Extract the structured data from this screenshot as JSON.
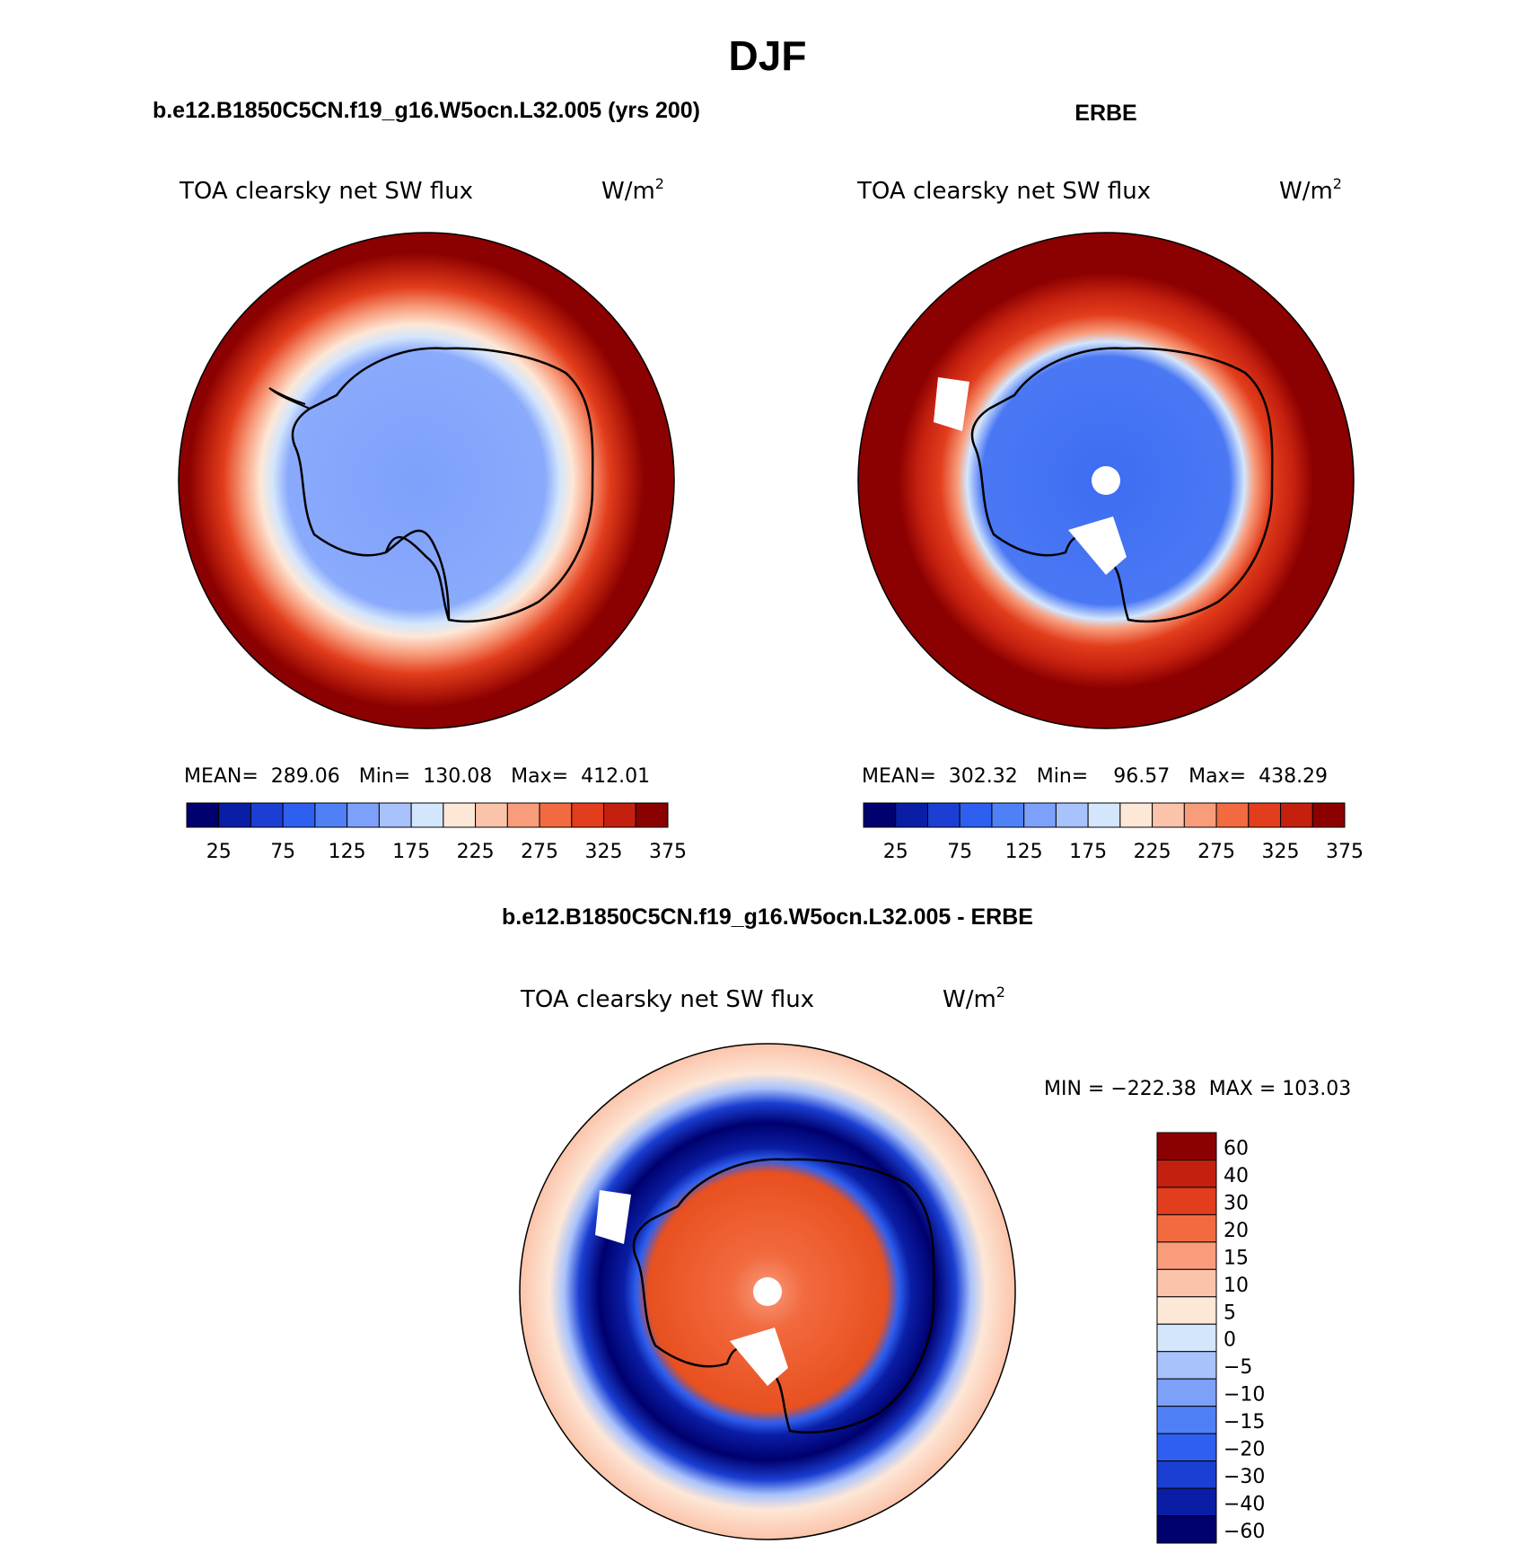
{
  "figure": {
    "season": "DJF",
    "variable": "TOA clearsky net SW flux",
    "units_base": "W/m",
    "units_exp": "2"
  },
  "panels": {
    "model": {
      "title": "b.e12.B1850C5CN.f19_g16.W5ocn.L32.005 (yrs 200)",
      "stats": "MEAN=  289.06   Min=  130.08   Max=  412.01"
    },
    "obs": {
      "title": "ERBE",
      "stats": "MEAN=  302.32   Min=    96.57   Max=  438.29"
    },
    "diff": {
      "title": "b.e12.B1850C5CN.f19_g16.W5ocn.L32.005 - ERBE",
      "stats": "MIN = −222.38  MAX = 103.03"
    }
  },
  "colorbars": {
    "abs": {
      "colors": [
        "#00006e",
        "#0a1ea5",
        "#1a3fd2",
        "#2e5ff0",
        "#5080f5",
        "#7da0fa",
        "#a8c2fc",
        "#d4e6fc",
        "#fde7d7",
        "#fbc4aa",
        "#f89c7b",
        "#f26a3f",
        "#e23d1c",
        "#c4200f",
        "#8b0000"
      ],
      "labels": [
        "25",
        "75",
        "125",
        "175",
        "225",
        "275",
        "325",
        "375"
      ]
    },
    "diff": {
      "colors": [
        "#00006e",
        "#0a1ea5",
        "#1a3fd2",
        "#2e5ff0",
        "#5080f5",
        "#7da0fa",
        "#a8c2fc",
        "#d4e6fc",
        "#fde7d7",
        "#fbc4aa",
        "#f89c7b",
        "#f26a3f",
        "#e23d1c",
        "#c4200f",
        "#8b0000"
      ],
      "labels": [
        "−60",
        "−40",
        "−30",
        "−20",
        "−15",
        "−10",
        "−5",
        "0",
        "5",
        "10",
        "15",
        "20",
        "30",
        "40",
        "60"
      ]
    }
  },
  "chart_data": [
    {
      "type": "heatmap",
      "title": "b.e12.B1850C5CN.f19_g16.W5ocn.L32.005 (yrs 200)",
      "subtitle": "TOA clearsky net SW flux",
      "units": "W/m2",
      "projection": "south polar stereographic",
      "season": "DJF",
      "mean": 289.06,
      "min": 130.08,
      "max": 412.01,
      "levels": [
        25,
        50,
        75,
        100,
        125,
        150,
        175,
        200,
        225,
        250,
        275,
        300,
        325,
        350,
        375,
        400
      ]
    },
    {
      "type": "heatmap",
      "title": "ERBE",
      "subtitle": "TOA clearsky net SW flux",
      "units": "W/m2",
      "projection": "south polar stereographic",
      "season": "DJF",
      "mean": 302.32,
      "min": 96.57,
      "max": 438.29,
      "levels": [
        25,
        50,
        75,
        100,
        125,
        150,
        175,
        200,
        225,
        250,
        275,
        300,
        325,
        350,
        375,
        400
      ]
    },
    {
      "type": "heatmap",
      "title": "b.e12.B1850C5CN.f19_g16.W5ocn.L32.005 - ERBE",
      "subtitle": "TOA clearsky net SW flux",
      "units": "W/m2",
      "projection": "south polar stereographic",
      "season": "DJF",
      "min": -222.38,
      "max": 103.03,
      "levels": [
        -60,
        -40,
        -30,
        -20,
        -15,
        -10,
        -5,
        0,
        5,
        10,
        15,
        20,
        30,
        40,
        60
      ]
    }
  ]
}
